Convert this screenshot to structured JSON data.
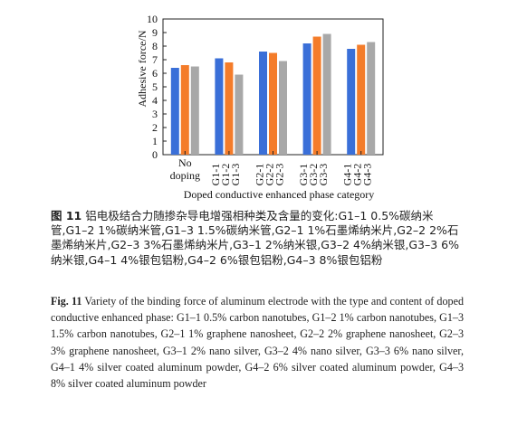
{
  "chart_data": {
    "type": "bar",
    "categories": [
      "No doping",
      "G1-1",
      "G1-2",
      "G1-3",
      "G2-1",
      "G2-2",
      "G2-3",
      "G3-1",
      "G3-2",
      "G3-3",
      "G4-1",
      "G4-2",
      "G4-3"
    ],
    "groups": [
      {
        "label": [
          "No",
          "doping"
        ],
        "values": [
          6.4,
          6.6,
          6.5
        ],
        "members": [
          "No doping",
          "No doping",
          "No doping"
        ]
      },
      {
        "label": [
          "G1-1",
          "G1-2",
          "G1-3"
        ],
        "values": [
          7.1,
          6.8,
          5.9
        ],
        "members": [
          "G1-1",
          "G1-2",
          "G1-3"
        ]
      },
      {
        "label": [
          "G2-1",
          "G2-2",
          "G2-3"
        ],
        "values": [
          7.6,
          7.5,
          6.9
        ],
        "members": [
          "G2-1",
          "G2-2",
          "G2-3"
        ]
      },
      {
        "label": [
          "G3-1",
          "G3-2",
          "G3-3"
        ],
        "values": [
          8.2,
          8.7,
          8.9
        ],
        "members": [
          "G3-1",
          "G3-2",
          "G3-3"
        ]
      },
      {
        "label": [
          "G4-1",
          "G4-2",
          "G4-3"
        ],
        "values": [
          7.8,
          8.1,
          8.3
        ],
        "members": [
          "G4-1",
          "G4-2",
          "G4-3"
        ]
      }
    ],
    "bar_colors": [
      "#3a6fd8",
      "#f47c2a",
      "#a8a8a8"
    ],
    "xlabel": "Doped conductive enhanced phase category",
    "ylabel": "Adhesive force/N",
    "ylim": [
      0,
      10
    ],
    "yticks": [
      0,
      1,
      2,
      3,
      4,
      5,
      6,
      7,
      8,
      9,
      10
    ],
    "grid": false,
    "legend": "none"
  },
  "caption": {
    "zh_label": "图 11",
    "zh_text": "铝电极结合力随掺杂导电增强相种类及含量的变化:G1–1 0.5%碳纳米管,G1–2 1%碳纳米管,G1–3 1.5%碳纳米管,G2–1 1%石墨烯纳米片,G2–2 2%石墨烯纳米片,G2–3 3%石墨烯纳米片,G3–1 2%纳米银,G3–2 4%纳米银,G3–3 6%纳米银,G4–1 4%银包铝粉,G4–2 6%银包铝粉,G4–3 8%银包铝粉",
    "en_label": "Fig. 11",
    "en_text": "Variety of the binding force of aluminum electrode with the type and content of doped conductive enhanced phase: G1–1 0.5% carbon nanotubes, G1–2 1% carbon nanotubes, G1–3 1.5% carbon nanotubes, G2–1 1% graphene nanosheet, G2–2 2% graphene nanosheet, G2–3 3% graphene nanosheet, G3–1 2% nano silver, G3–2 4% nano silver, G3–3 6% nano silver, G4–1 4% silver coated aluminum powder, G4–2 6% silver coated aluminum powder, G4–3 8% silver coated aluminum powder"
  }
}
